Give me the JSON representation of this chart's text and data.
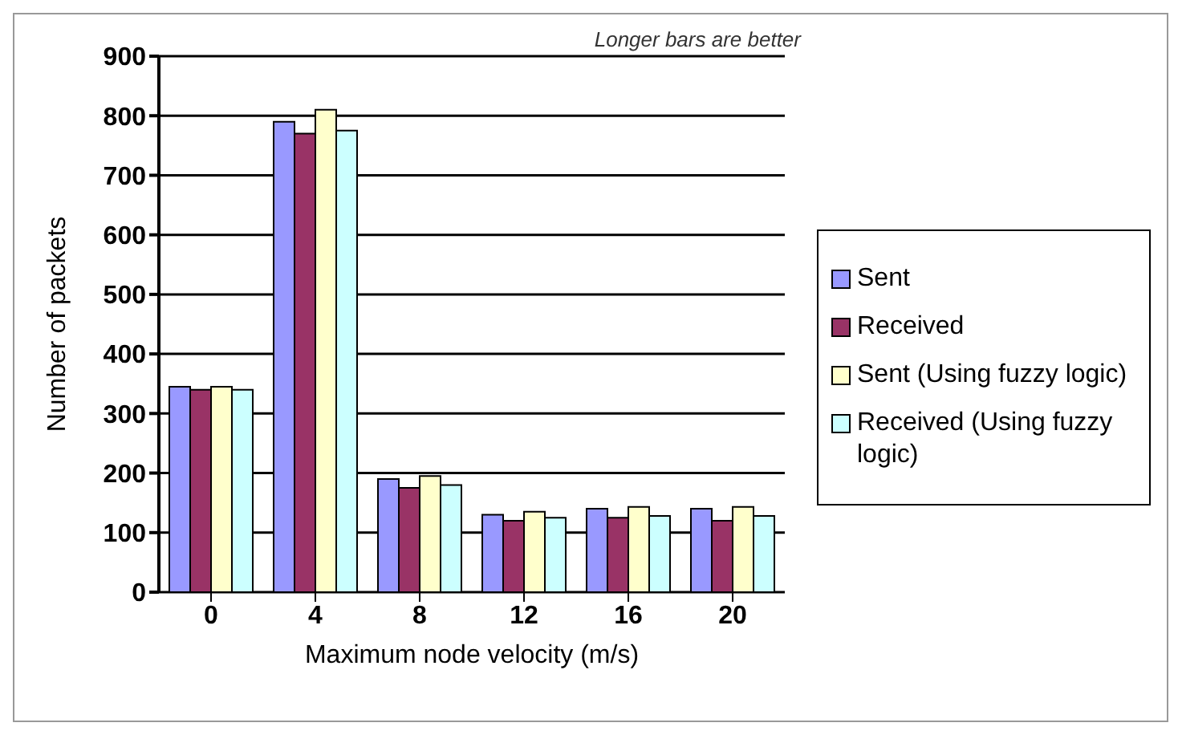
{
  "chart_data": {
    "type": "bar",
    "xlabel": "Maximum node velocity (m/s)",
    "ylabel": "Number of packets",
    "annotations": [
      "Longer bars are better"
    ],
    "categories": [
      "0",
      "4",
      "8",
      "12",
      "16",
      "20"
    ],
    "series": [
      {
        "name": "Sent",
        "color": "#9999ff",
        "values": [
          345,
          790,
          190,
          130,
          140,
          140
        ]
      },
      {
        "name": "Received",
        "color": "#993366",
        "values": [
          340,
          770,
          175,
          120,
          125,
          120
        ]
      },
      {
        "name": "Sent (Using fuzzy logic)",
        "color": "#ffffcc",
        "values": [
          345,
          810,
          195,
          135,
          143,
          143
        ]
      },
      {
        "name": "Received (Using fuzzy logic)",
        "color": "#ccffff",
        "values": [
          340,
          775,
          180,
          125,
          128,
          128
        ]
      }
    ],
    "ylim": [
      0,
      900
    ],
    "yticks": [
      0,
      100,
      200,
      300,
      400,
      500,
      600,
      700,
      800,
      900
    ],
    "grid": "y",
    "legend": "right"
  }
}
